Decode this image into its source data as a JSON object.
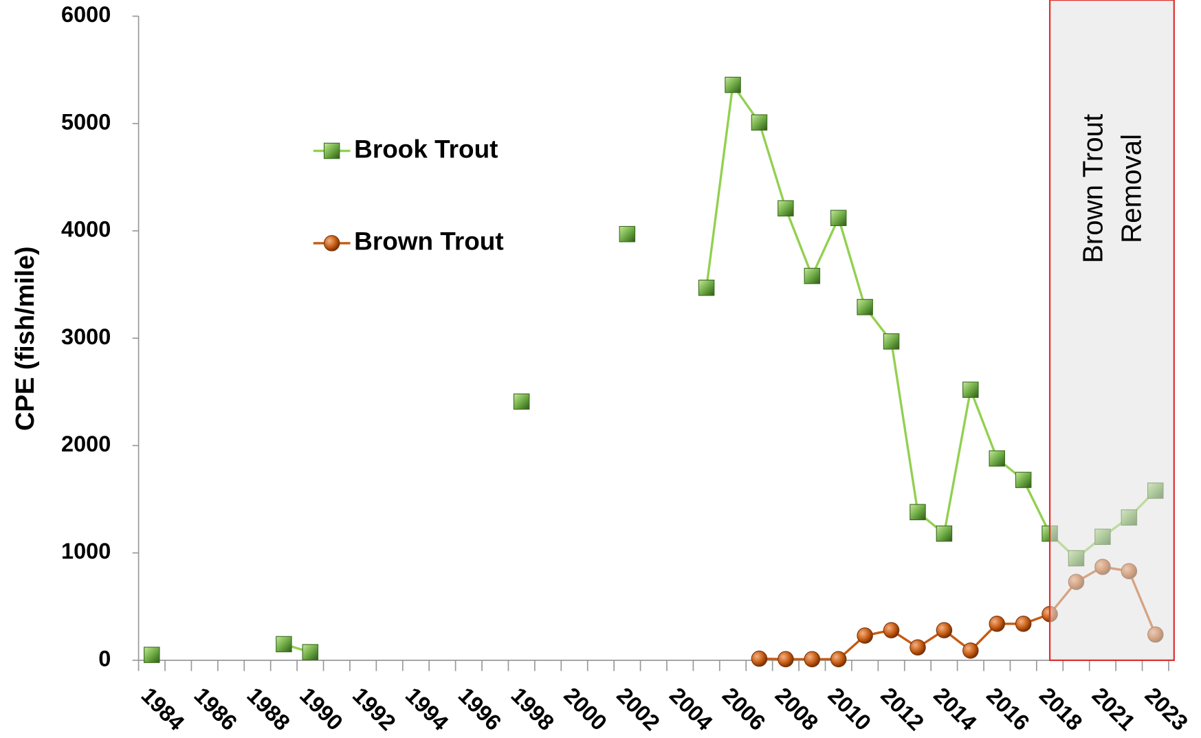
{
  "chart_data": {
    "type": "line",
    "y_label": "CPE (fish/mile)",
    "annotation": [
      "Brown Trout",
      "Removal"
    ],
    "categories": [
      "1984",
      null,
      "1986",
      null,
      "1988",
      null,
      "1990",
      null,
      "1992",
      null,
      "1994",
      null,
      "1996",
      null,
      "1998",
      null,
      "2000",
      null,
      "2002",
      null,
      "2004",
      null,
      "2006",
      null,
      "2008",
      null,
      "2010",
      null,
      "2012",
      null,
      "2014",
      null,
      "2016",
      null,
      "2018",
      null,
      "2021",
      null,
      "2023"
    ],
    "series": [
      {
        "name": "Brook Trout",
        "color": "#92d050",
        "marker": "square",
        "marker_color": "#70ad47",
        "values": [
          50,
          null,
          null,
          null,
          null,
          150,
          75,
          null,
          null,
          null,
          null,
          null,
          null,
          null,
          2410,
          null,
          null,
          null,
          3970,
          null,
          null,
          3470,
          5360,
          5010,
          4210,
          3580,
          4120,
          3290,
          2970,
          1380,
          1180,
          2520,
          1880,
          1680,
          1180,
          950,
          1150,
          1330,
          1580
        ]
      },
      {
        "name": "Brown Trout",
        "color": "#c55a11",
        "marker": "circle",
        "marker_color": "#c55a11",
        "values": [
          null,
          null,
          null,
          null,
          null,
          null,
          null,
          null,
          null,
          null,
          null,
          null,
          null,
          null,
          null,
          null,
          null,
          null,
          null,
          null,
          null,
          null,
          null,
          15,
          10,
          10,
          10,
          230,
          280,
          120,
          280,
          90,
          340,
          340,
          430,
          730,
          870,
          830,
          240
        ]
      }
    ],
    "ylim": [
      0,
      6000
    ],
    "yticks": [
      0,
      1000,
      2000,
      3000,
      4000,
      5000,
      6000
    ]
  }
}
